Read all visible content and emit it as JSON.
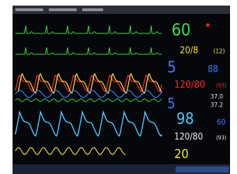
{
  "vitals": {
    "hr": "60",
    "st": "20/8",
    "st_paren": "(12)",
    "param_a": "5",
    "param_b": "88",
    "art": "120/80",
    "art_mean": "(93)",
    "param_c": "5",
    "temp_1": "37.0",
    "temp_2": "37.2",
    "spo2": "98",
    "pr": "60",
    "nibp": "120/80",
    "nibp_mean": "(93)",
    "resp": "20"
  }
}
